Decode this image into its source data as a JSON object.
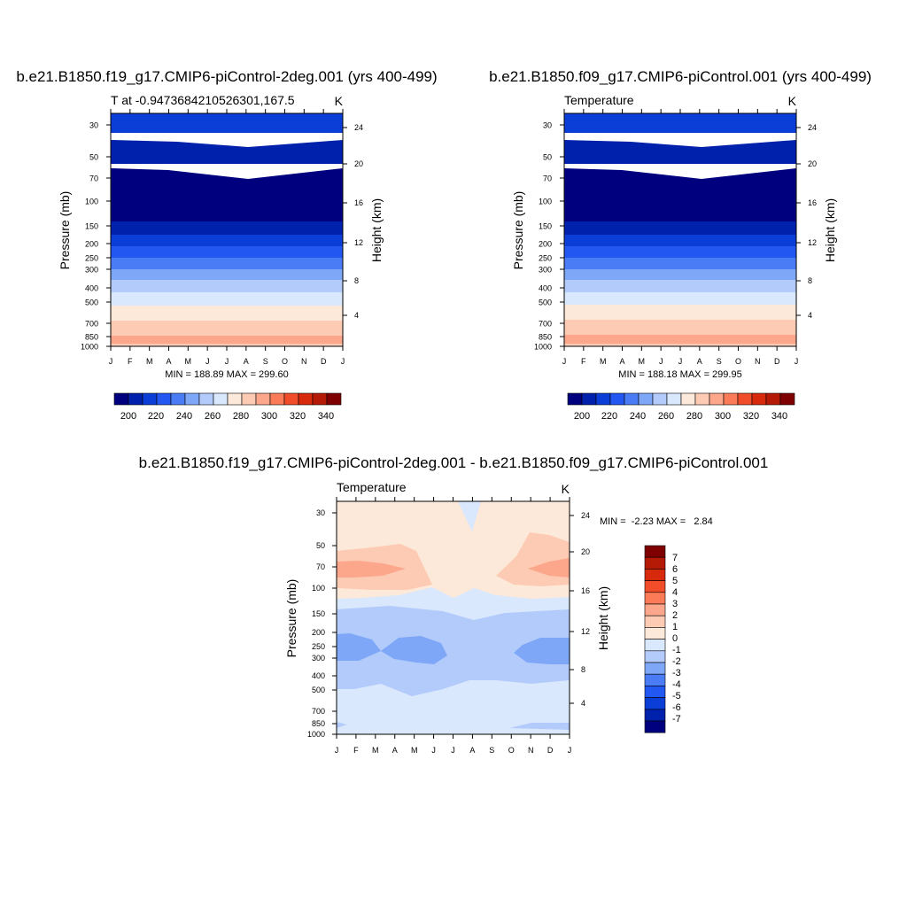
{
  "panels": [
    {
      "title": "b.e21.B1850.f19_g17.CMIP6-piControl-2deg.001 (yrs 400-499)",
      "left_label": "T at -0.9473684210526301,167.5",
      "right_label": "K",
      "minmax": "MIN = 188.89 MAX = 299.60"
    },
    {
      "title": "b.e21.B1850.f09_g17.CMIP6-piControl.001 (yrs 400-499)",
      "left_label": "Temperature",
      "right_label": "K",
      "minmax": "MIN = 188.18 MAX = 299.95"
    },
    {
      "title": "b.e21.B1850.f19_g17.CMIP6-piControl-2deg.001 - b.e21.B1850.f09_g17.CMIP6-piControl.001",
      "left_label": "Temperature",
      "right_label": "K",
      "minmax": "MIN =  -2.23 MAX =   2.84"
    }
  ],
  "axes": {
    "ylabel_left": "Pressure (mb)",
    "ylabel_right": "Height (km)",
    "pressure_ticks": [
      "30",
      "50",
      "70",
      "100",
      "150",
      "200",
      "250",
      "300",
      "400",
      "500",
      "700",
      "850",
      "1000"
    ],
    "height_ticks": [
      "24",
      "20",
      "16",
      "12",
      "8",
      "4"
    ],
    "month_ticks": [
      "J",
      "F",
      "M",
      "A",
      "M",
      "J",
      "J",
      "A",
      "S",
      "O",
      "N",
      "D",
      "J"
    ]
  },
  "colorbars": {
    "temperature": {
      "labels": [
        "200",
        "220",
        "240",
        "260",
        "280",
        "300",
        "320",
        "340"
      ],
      "colors": [
        "#00007f",
        "#0021ab",
        "#0a3ed7",
        "#2257f2",
        "#4a7df5",
        "#7ea7f8",
        "#b3cbfb",
        "#d9e8fd",
        "#fde9d9",
        "#fdcbb3",
        "#fca78b",
        "#fb7a57",
        "#f24d2a",
        "#d72a0d",
        "#b51a06",
        "#7f0000"
      ]
    },
    "difference": {
      "labels": [
        "7",
        "6",
        "5",
        "4",
        "3",
        "2",
        "1",
        "0",
        "-1",
        "-2",
        "-3",
        "-4",
        "-5",
        "-6",
        "-7"
      ],
      "colors": [
        "#7f0000",
        "#b51a06",
        "#d72a0d",
        "#f24d2a",
        "#fb7a57",
        "#fca78b",
        "#fdcbb3",
        "#fde9d9",
        "#d9e8fd",
        "#b3cbfb",
        "#7ea7f8",
        "#4a7df5",
        "#2257f2",
        "#0a3ed7",
        "#0021ab",
        "#00007f"
      ]
    }
  },
  "chart_data": [
    {
      "type": "heatmap",
      "title": "b.e21.B1850.f19_g17.CMIP6-piControl-2deg.001 (yrs 400-499)",
      "subtitle": "T at -0.9473684210526301,167.5",
      "units": "K",
      "x": [
        "J",
        "F",
        "M",
        "A",
        "M",
        "J",
        "J",
        "A",
        "S",
        "O",
        "N",
        "D",
        "J"
      ],
      "xlabel": "",
      "ylabel": "Pressure (mb)",
      "ylabel_right": "Height (km)",
      "y_scale": "log",
      "ylim": [
        1000,
        25
      ],
      "levels_K": [
        190,
        200,
        210,
        220,
        230,
        240,
        250,
        260,
        270,
        280,
        290,
        300
      ],
      "profile_pressure_mb": [
        25,
        40,
        55,
        70,
        100,
        140,
        170,
        210,
        250,
        300,
        350,
        420,
        500,
        700,
        850,
        1000
      ],
      "profile_temperature_K": [
        212,
        208,
        199,
        192,
        191,
        194,
        203,
        212,
        220,
        229,
        237,
        248,
        262,
        283,
        292,
        299
      ],
      "min": 188.89,
      "max": 299.6,
      "grid": false
    },
    {
      "type": "heatmap",
      "title": "b.e21.B1850.f09_g17.CMIP6-piControl.001 (yrs 400-499)",
      "subtitle": "Temperature",
      "units": "K",
      "x": [
        "J",
        "F",
        "M",
        "A",
        "M",
        "J",
        "J",
        "A",
        "S",
        "O",
        "N",
        "D",
        "J"
      ],
      "xlabel": "",
      "ylabel": "Pressure (mb)",
      "ylabel_right": "Height (km)",
      "y_scale": "log",
      "ylim": [
        1000,
        25
      ],
      "levels_K": [
        190,
        200,
        210,
        220,
        230,
        240,
        250,
        260,
        270,
        280,
        290,
        300
      ],
      "profile_pressure_mb": [
        25,
        40,
        55,
        70,
        100,
        140,
        170,
        210,
        250,
        300,
        350,
        420,
        500,
        700,
        850,
        1000
      ],
      "profile_temperature_K": [
        212,
        208,
        199,
        192,
        190,
        194,
        203,
        212,
        220,
        229,
        237,
        248,
        262,
        283,
        292,
        299
      ],
      "min": 188.18,
      "max": 299.95,
      "grid": false
    },
    {
      "type": "heatmap",
      "title": "b.e21.B1850.f19_g17.CMIP6-piControl-2deg.001 - b.e21.B1850.f09_g17.CMIP6-piControl.001",
      "subtitle": "Temperature",
      "units": "K",
      "x": [
        "J",
        "F",
        "M",
        "A",
        "M",
        "J",
        "J",
        "A",
        "S",
        "O",
        "N",
        "D",
        "J"
      ],
      "xlabel": "",
      "ylabel": "Pressure (mb)",
      "ylabel_right": "Height (km)",
      "y_scale": "log",
      "ylim": [
        1000,
        25
      ],
      "levels": [
        -7,
        -6,
        -5,
        -4,
        -3,
        -2,
        -1,
        0,
        1,
        2,
        3,
        4,
        5,
        6,
        7
      ],
      "min": -2.23,
      "max": 2.84,
      "grid": false
    }
  ]
}
